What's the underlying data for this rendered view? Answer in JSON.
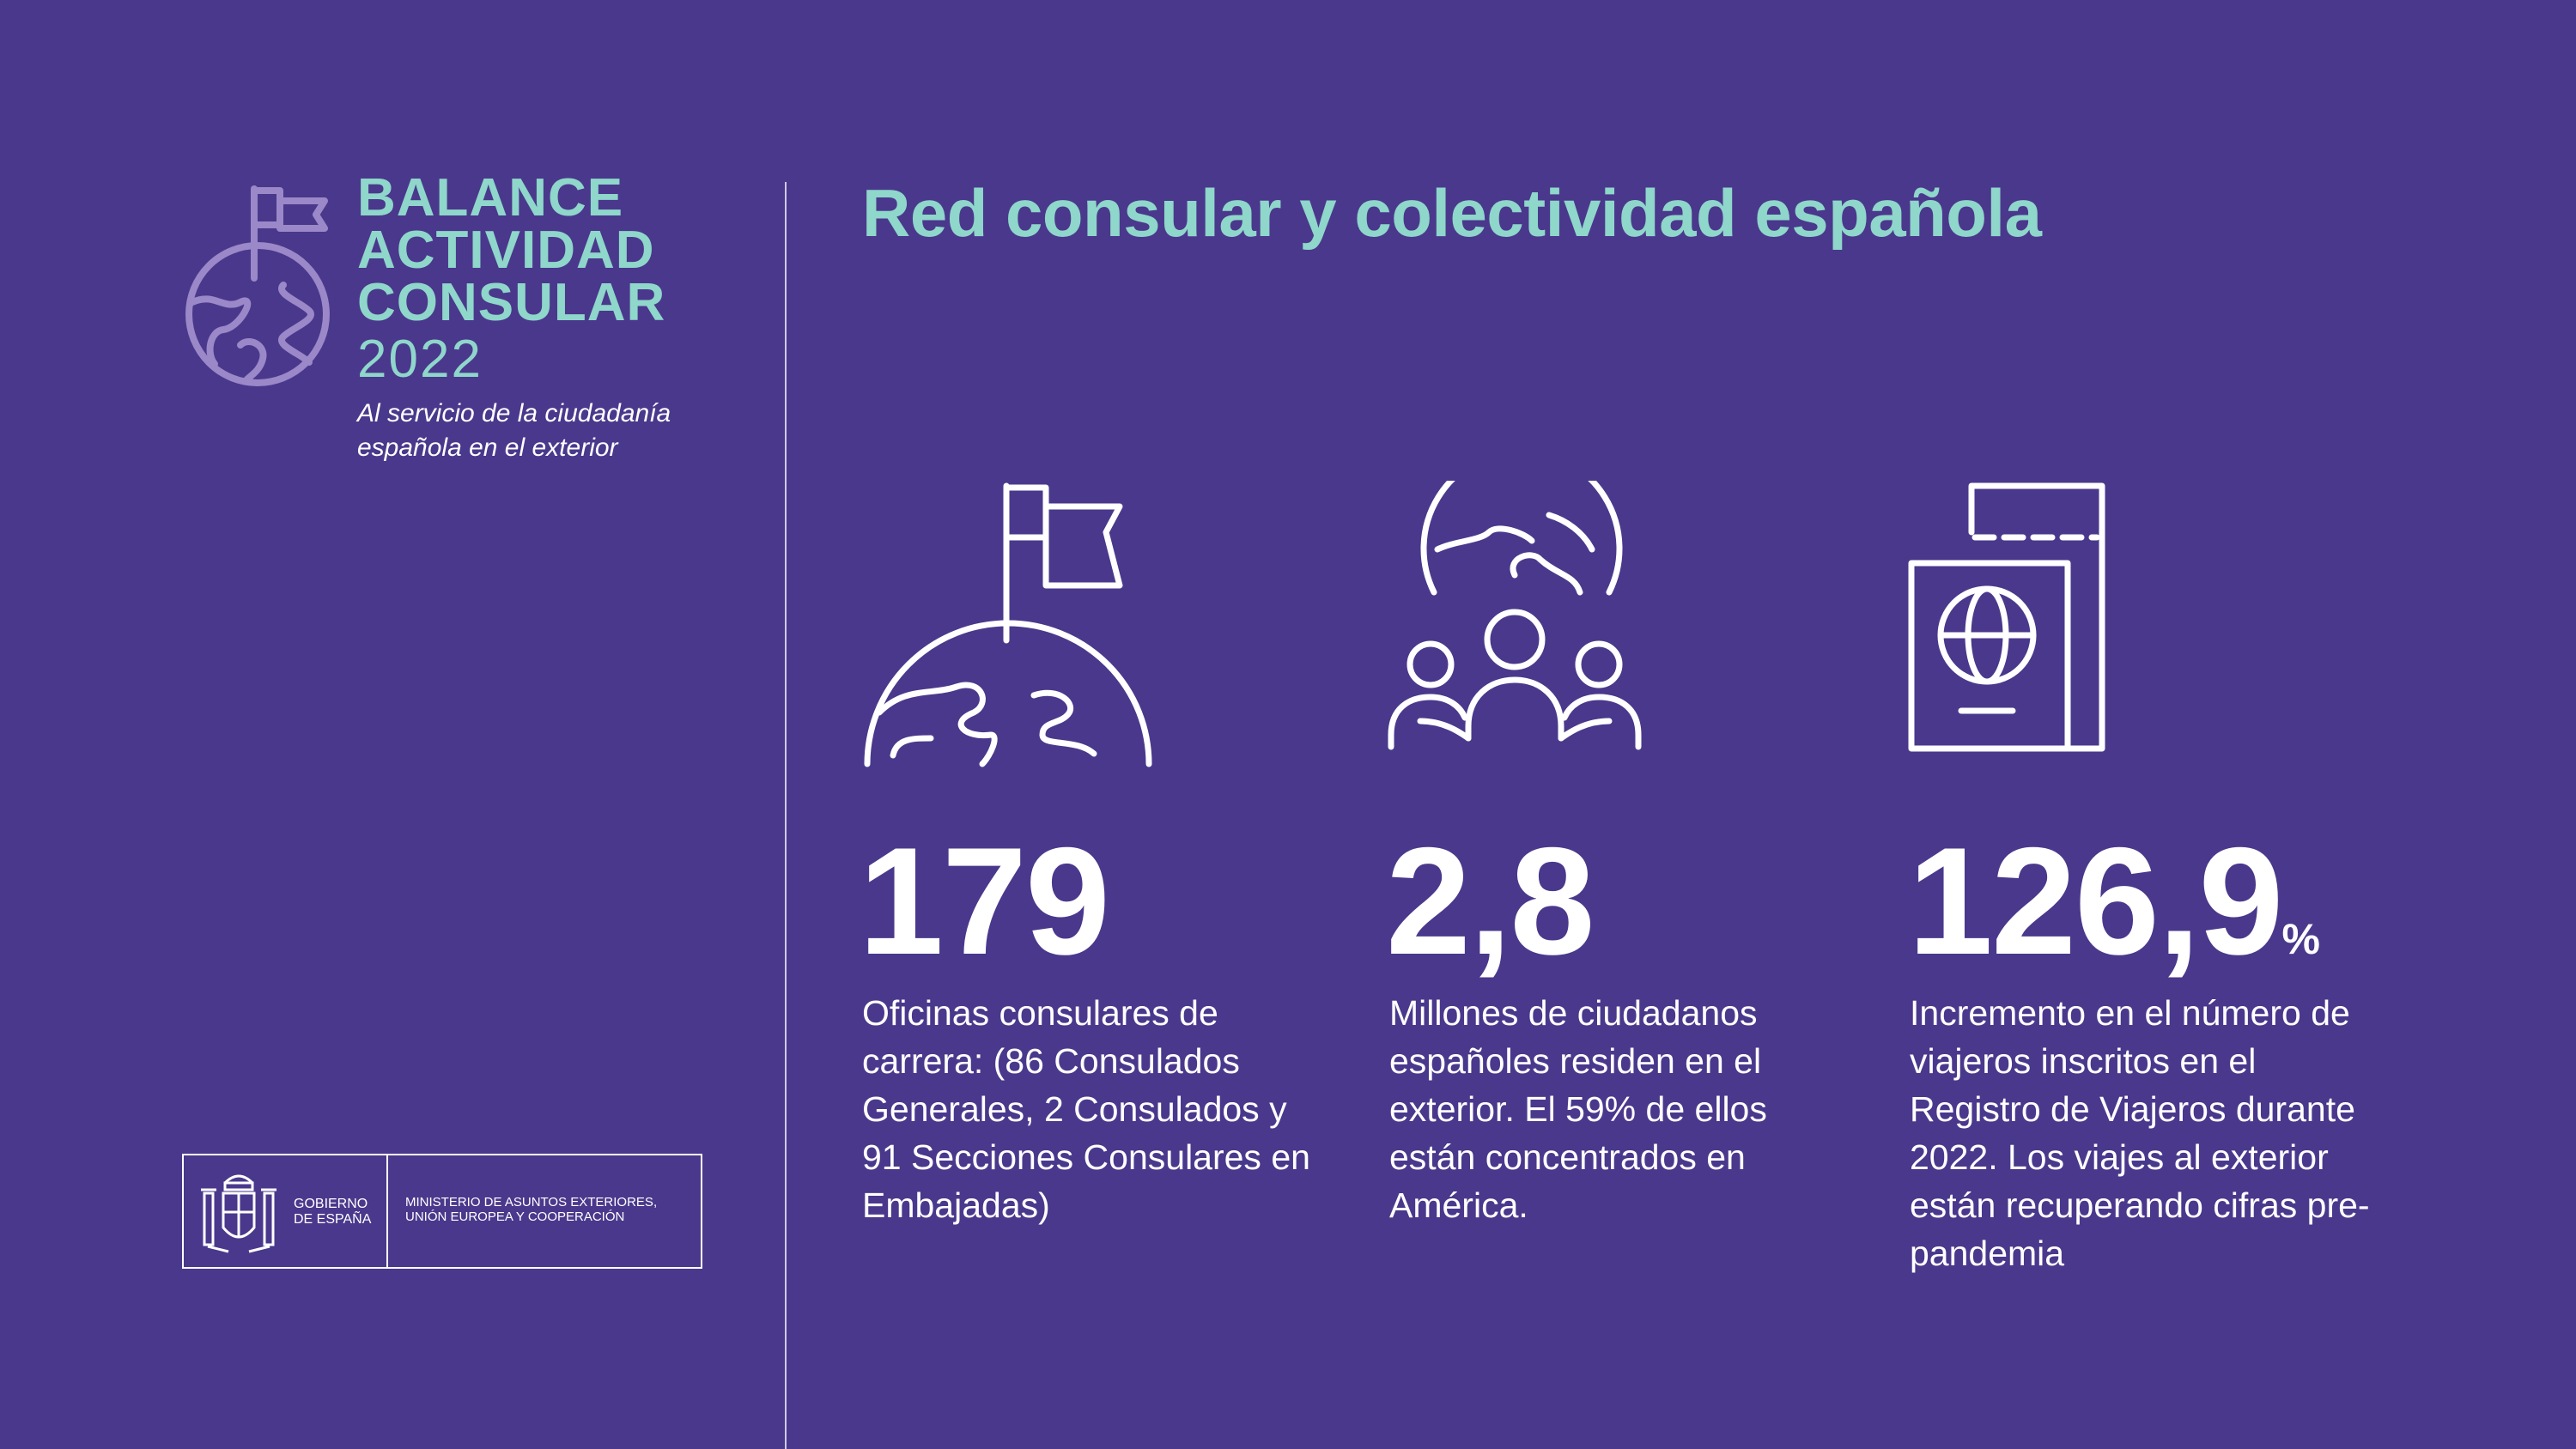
{
  "brand": {
    "title_lines": [
      "BALANCE",
      "ACTIVIDAD",
      "CONSULAR"
    ],
    "year": "2022",
    "subtitle": "Al servicio de la ciudadanía española en el exterior",
    "icon": "globe-flag-icon"
  },
  "government": {
    "label": "GOBIERNO DE ESPAÑA",
    "ministry": "MINISTERIO DE ASUNTOS EXTERIORES, UNIÓN EUROPEA Y COOPERACIÓN",
    "icon": "coat-of-arms-icon"
  },
  "main": {
    "title": "Red consular y colectividad española"
  },
  "stats": [
    {
      "icon": "globe-flag-icon",
      "value": "179",
      "unit": "",
      "description": "Oficinas consulares de carrera: (86 Consulados Generales, 2 Consulados y 91 Secciones Consulares en Embajadas)"
    },
    {
      "icon": "people-globe-icon",
      "value": "2,8",
      "unit": "",
      "description": "Millones de ciudadanos españoles residen en el exterior. El 59% de ellos están concentrados en América."
    },
    {
      "icon": "passport-icon",
      "value": "126,9",
      "unit": "%",
      "description": "Incremento en el número de viajeros inscritos en el Registro de Viajeros durante 2022. Los viajes al exterior están recuperando cifras pre-pandemia"
    }
  ],
  "colors": {
    "background": "#4a388c",
    "accent": "#8fd6cb",
    "text": "#ffffff"
  }
}
